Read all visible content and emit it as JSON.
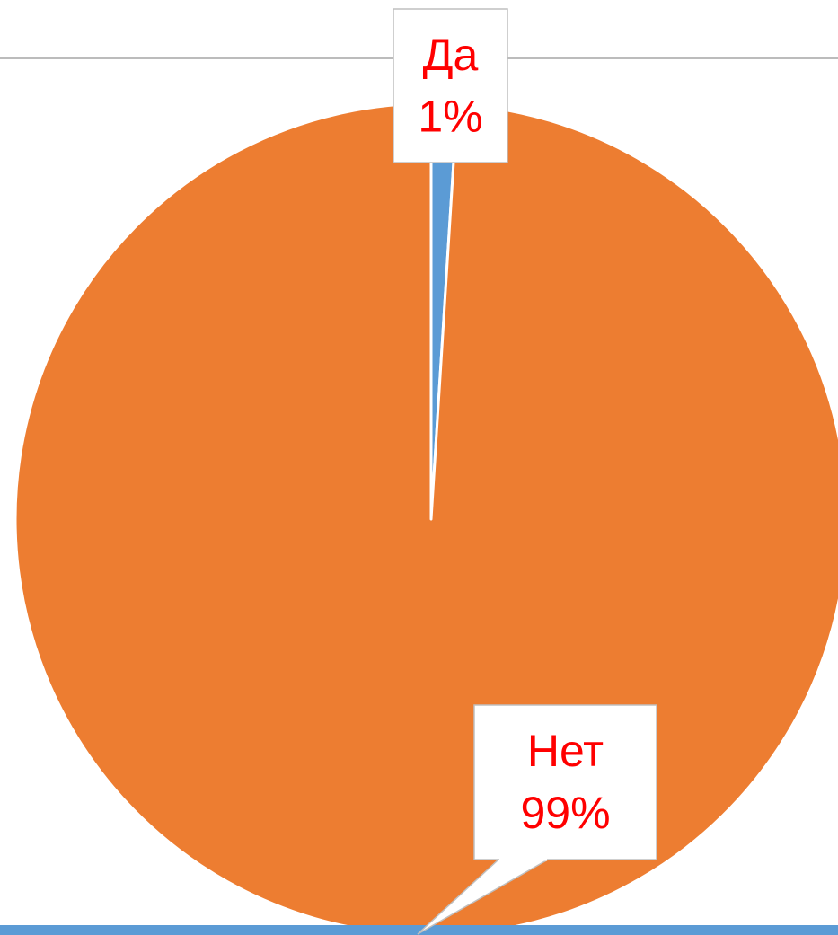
{
  "chart_data": {
    "type": "pie",
    "categories": [
      "Да",
      "Нет"
    ],
    "values": [
      1,
      99
    ],
    "value_labels": [
      "1%",
      "99%"
    ],
    "colors": [
      "#5b9bd5",
      "#ed7d31"
    ]
  }
}
